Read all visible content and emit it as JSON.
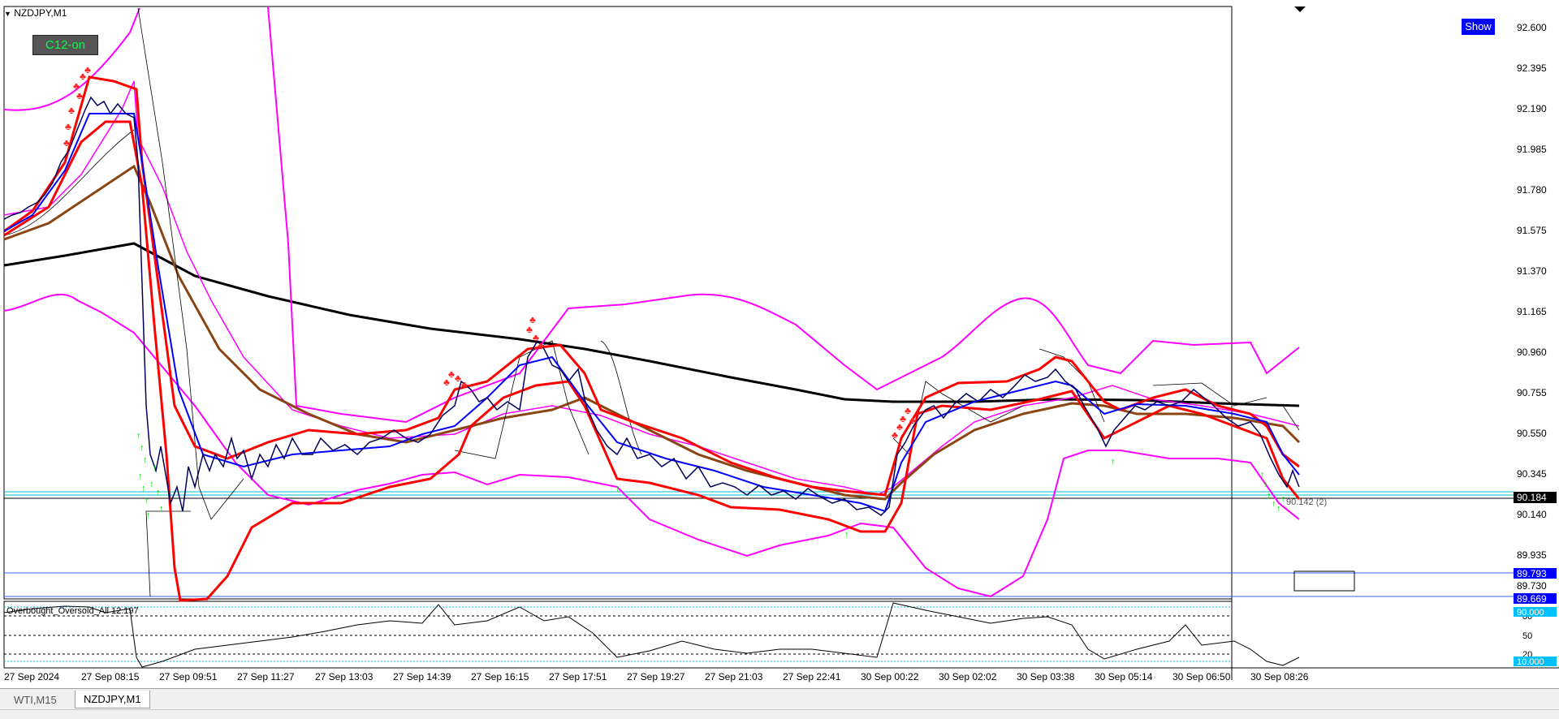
{
  "window": {
    "symbol_label": "NZDJPY,M1",
    "dropdown_glyph": "▼"
  },
  "buttons": {
    "c12": "C12-on",
    "show": "Show"
  },
  "price_axis": {
    "ticks": [
      "92.600",
      "92.395",
      "92.190",
      "91.985",
      "91.780",
      "91.575",
      "91.370",
      "91.165",
      "90.960",
      "90.755",
      "90.550",
      "90.345",
      "90.140",
      "89.935",
      "89.730"
    ],
    "current_price": "90.184",
    "line_level_1": "89.793",
    "line_level_2": "89.669",
    "bid_tag": "90.142 (2)"
  },
  "time_axis": [
    "27 Sep 2024",
    "27 Sep 08:15",
    "27 Sep 09:51",
    "27 Sep 11:27",
    "27 Sep 13:03",
    "27 Sep 14:39",
    "27 Sep 16:15",
    "27 Sep 17:51",
    "27 Sep 19:27",
    "27 Sep 21:03",
    "27 Sep 22:41",
    "30 Sep 00:22",
    "30 Sep 02:02",
    "30 Sep 03:38",
    "30 Sep 05:14",
    "30 Sep 06:50",
    "30 Sep 08:26"
  ],
  "subwindow": {
    "label": "Overbought_Oversold_All 12.197",
    "levels": [
      "80",
      "50",
      "20"
    ],
    "upper_tag": "90.000",
    "lower_tag": "10.000"
  },
  "tabs": [
    {
      "label": "WTI,M15",
      "active": false
    },
    {
      "label": "NZDJPY,M1",
      "active": true
    }
  ],
  "colors": {
    "price_line": "#00005a",
    "ma_red": "#ff0000",
    "ma_blue": "#0000ff",
    "ma_brown": "#8b4513",
    "ma_long": "#000000",
    "bands": "#ff00ff",
    "buy_arrows": "#00e000",
    "sell_arrows": "#ff2020",
    "axis_tag": "#0000ff",
    "subwindow_tag": "#00c0ff"
  },
  "icons": {
    "sell_signal": "arrow-down-icon",
    "buy_signal": "arrow-up-icon"
  }
}
